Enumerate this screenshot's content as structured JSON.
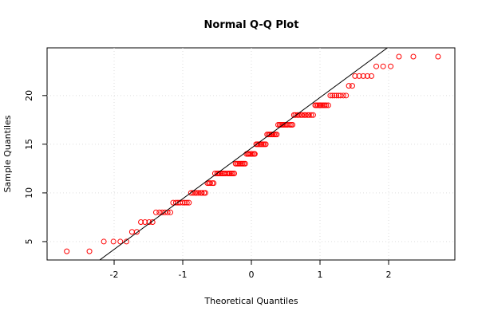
{
  "chart_data": {
    "type": "qq",
    "title": "Normal Q-Q Plot",
    "x_label": "Theoretical Quantiles",
    "y_label": "Sample Quantiles",
    "series": [
      {
        "color": "#ff0000",
        "x": [
          -2.69,
          -2.36,
          -2.15,
          -2.01,
          -1.91,
          -1.82,
          -1.74,
          -1.67,
          -1.61,
          -1.55,
          -1.49,
          -1.44,
          -1.39,
          -1.34,
          -1.3,
          -1.26,
          -1.22,
          -1.18,
          -1.14,
          -1.1,
          -1.07,
          -1.04,
          -1.0,
          -0.97,
          -0.94,
          -0.91,
          -0.88,
          -0.85,
          -0.82,
          -0.8,
          -0.77,
          -0.74,
          -0.72,
          -0.69,
          -0.67,
          -0.64,
          -0.62,
          -0.6,
          -0.57,
          -0.55,
          -0.53,
          -0.5,
          -0.48,
          -0.46,
          -0.44,
          -0.42,
          -0.4,
          -0.38,
          -0.35,
          -0.33,
          -0.31,
          -0.29,
          -0.27,
          -0.25,
          -0.23,
          -0.21,
          -0.19,
          -0.17,
          -0.15,
          -0.13,
          -0.11,
          -0.09,
          -0.07,
          -0.05,
          -0.04,
          -0.02,
          0.0,
          0.02,
          0.04,
          0.05,
          0.07,
          0.09,
          0.11,
          0.13,
          0.15,
          0.17,
          0.19,
          0.21,
          0.23,
          0.25,
          0.27,
          0.29,
          0.31,
          0.33,
          0.35,
          0.37,
          0.39,
          0.41,
          0.43,
          0.45,
          0.47,
          0.49,
          0.51,
          0.53,
          0.56,
          0.58,
          0.6,
          0.62,
          0.64,
          0.67,
          0.69,
          0.72,
          0.74,
          0.77,
          0.79,
          0.82,
          0.84,
          0.87,
          0.9,
          0.93,
          0.95,
          0.97,
          0.99,
          1.01,
          1.03,
          1.05,
          1.07,
          1.09,
          1.12,
          1.15,
          1.18,
          1.21,
          1.24,
          1.27,
          1.3,
          1.34,
          1.38,
          1.42,
          1.47,
          1.51,
          1.57,
          1.63,
          1.69,
          1.75,
          1.82,
          1.92,
          2.03,
          2.15,
          2.36,
          2.72
        ],
        "values": [
          4,
          4,
          5,
          5,
          5,
          5,
          6,
          6,
          7,
          7,
          7,
          7,
          8,
          8,
          8,
          8,
          8,
          8,
          9,
          9,
          9,
          9,
          9,
          9,
          9,
          9,
          10,
          10,
          10,
          10,
          10,
          10,
          10,
          10,
          10,
          11,
          11,
          11,
          11,
          11,
          12,
          12,
          12,
          12,
          12,
          12,
          12,
          12,
          12,
          12,
          12,
          12,
          12,
          12,
          13,
          13,
          13,
          13,
          13,
          13,
          13,
          13,
          14,
          14,
          14,
          14,
          14,
          14,
          14,
          14,
          15,
          15,
          15,
          15,
          15,
          15,
          15,
          15,
          16,
          16,
          16,
          16,
          16,
          16,
          16,
          16,
          17,
          17,
          17,
          17,
          17,
          17,
          17,
          17,
          17,
          17,
          17,
          18,
          18,
          18,
          18,
          18,
          18,
          18,
          18,
          18,
          18,
          18,
          18,
          19,
          19,
          19,
          19,
          19,
          19,
          19,
          19,
          19,
          19,
          20,
          20,
          20,
          20,
          20,
          20,
          20,
          20,
          21,
          21,
          22,
          22,
          22,
          22,
          22,
          23,
          23,
          23,
          24,
          24,
          24
        ]
      }
    ],
    "qqline": {
      "intercept": 14.6,
      "slope": 5.2,
      "color": "#000000"
    },
    "xlim": [
      -2.977,
      2.965
    ],
    "ylim": [
      3.11,
      24.9
    ],
    "xticks": [
      -2,
      -1,
      0,
      1,
      2
    ],
    "yticks": [
      5,
      10,
      15,
      20
    ],
    "grid": true
  }
}
